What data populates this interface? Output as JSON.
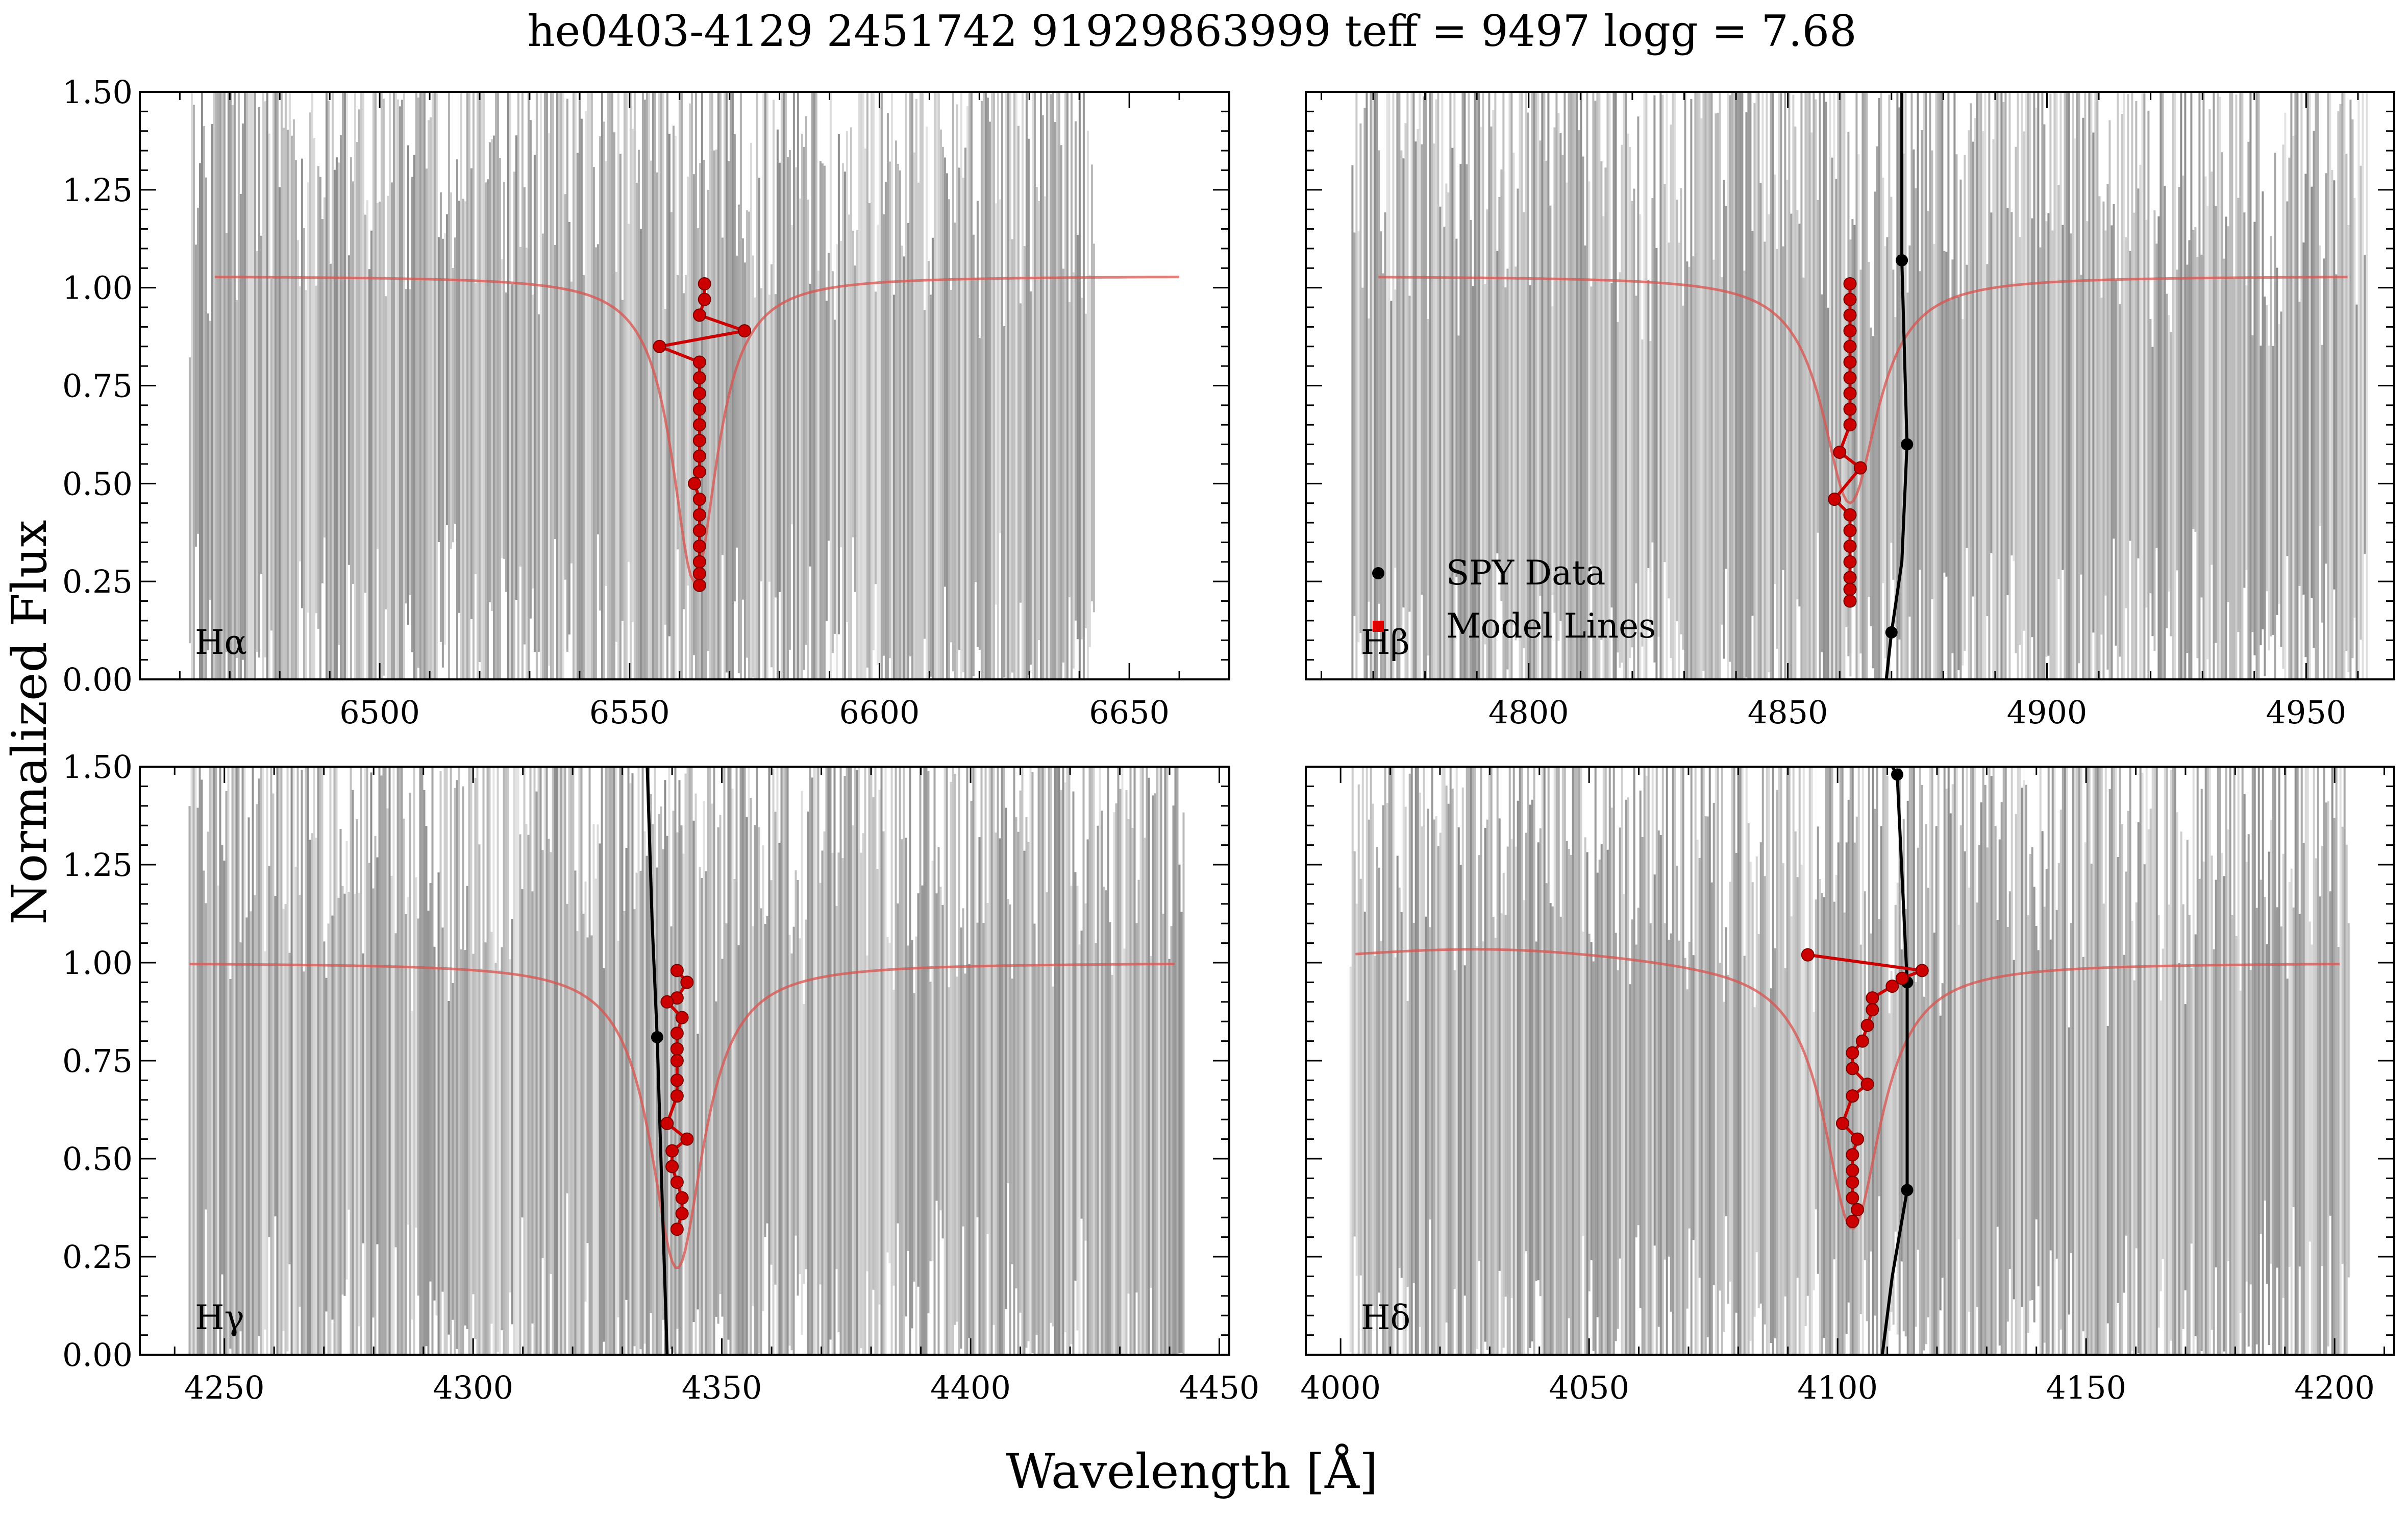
{
  "figure": {
    "title": "he0403-4129 2451742 91929863999 teff =  9497 logg = 7.68",
    "xlabel": "Wavelength [Å]",
    "ylabel": "Normalized Flux"
  },
  "legend": {
    "location": "lower-left of Hβ panel",
    "entries": [
      {
        "label": "SPY Data",
        "color": "#000000",
        "marker": "circle"
      },
      {
        "label": "Model Lines",
        "color": "#e00000",
        "marker": "square"
      }
    ]
  },
  "colors": {
    "data": "#000000",
    "data_band": "#6b6b6b",
    "model": "#d9534f",
    "model_points": "#cc0000",
    "axes": "#000000"
  },
  "chart_data": [
    {
      "type": "line",
      "panel_label": "Hα",
      "xlim": [
        6452,
        6670
      ],
      "ylim": [
        0,
        1.5
      ],
      "xticks": [
        6500,
        6550,
        6600,
        6650
      ],
      "yticks": [
        "0.00",
        "0.25",
        "0.50",
        "0.75",
        "1.00",
        "1.25",
        "1.50"
      ],
      "data_band_x": [
        6462,
        6643
      ],
      "model": {
        "x0": 6563,
        "x_start": 6467,
        "x_end": 6660,
        "depth": 0.78,
        "width": 5.5,
        "continuum_left": 1.03,
        "continuum_right": 1.03,
        "bump_x": null,
        "bump_amp": 0
      },
      "model_points": [
        [
          6565,
          1.01
        ],
        [
          6565,
          0.97
        ],
        [
          6564,
          0.93
        ],
        [
          6573,
          0.89
        ],
        [
          6556,
          0.85
        ],
        [
          6564,
          0.81
        ],
        [
          6564,
          0.77
        ],
        [
          6564,
          0.73
        ],
        [
          6564,
          0.69
        ],
        [
          6564,
          0.65
        ],
        [
          6564,
          0.61
        ],
        [
          6564,
          0.57
        ],
        [
          6564,
          0.53
        ],
        [
          6563,
          0.5
        ],
        [
          6564,
          0.46
        ],
        [
          6564,
          0.42
        ],
        [
          6564,
          0.38
        ],
        [
          6564,
          0.34
        ],
        [
          6564,
          0.3
        ],
        [
          6564,
          0.27
        ],
        [
          6564,
          0.24
        ]
      ],
      "data_points": [],
      "data_curve": []
    },
    {
      "type": "line",
      "panel_label": "Hβ",
      "xlim": [
        4757,
        4967
      ],
      "ylim": [
        0,
        1.5
      ],
      "xticks": [
        4800,
        4850,
        4900,
        4950
      ],
      "yticks": [],
      "data_band_x": [
        4766,
        4962
      ],
      "model": {
        "x0": 4862,
        "x_start": 4771,
        "x_end": 4958,
        "depth": 0.58,
        "width": 6.5,
        "continuum_left": 1.03,
        "continuum_right": 1.03,
        "bump_x": null,
        "bump_amp": 0
      },
      "model_points": [
        [
          4862,
          1.01
        ],
        [
          4862,
          0.97
        ],
        [
          4862,
          0.93
        ],
        [
          4862,
          0.89
        ],
        [
          4862,
          0.85
        ],
        [
          4862,
          0.81
        ],
        [
          4862,
          0.77
        ],
        [
          4862,
          0.73
        ],
        [
          4862,
          0.69
        ],
        [
          4862,
          0.65
        ],
        [
          4860,
          0.58
        ],
        [
          4864,
          0.54
        ],
        [
          4859,
          0.46
        ],
        [
          4862,
          0.42
        ],
        [
          4862,
          0.38
        ],
        [
          4862,
          0.34
        ],
        [
          4862,
          0.3
        ],
        [
          4862,
          0.26
        ],
        [
          4862,
          0.23
        ],
        [
          4862,
          0.2
        ]
      ],
      "data_points": [
        [
          4872,
          1.07
        ],
        [
          4873,
          0.6
        ],
        [
          4870,
          0.12
        ]
      ],
      "data_curve": [
        [
          4872,
          1.5
        ],
        [
          4872,
          1.07
        ],
        [
          4873,
          0.6
        ],
        [
          4872,
          0.3
        ],
        [
          4870,
          0.12
        ],
        [
          4869,
          0.0
        ]
      ]
    },
    {
      "type": "line",
      "panel_label": "Hγ",
      "xlim": [
        4233,
        4452
      ],
      "ylim": [
        0,
        1.5
      ],
      "xticks": [
        4250,
        4300,
        4350,
        4400,
        4450
      ],
      "yticks": [
        "0.00",
        "0.25",
        "0.50",
        "0.75",
        "1.00",
        "1.25",
        "1.50"
      ],
      "data_band_x": [
        4243,
        4443
      ],
      "model": {
        "x0": 4341,
        "x_start": 4243,
        "x_end": 4441,
        "depth": 0.78,
        "width": 6.5,
        "continuum_left": 1.0,
        "continuum_right": 1.0,
        "bump_x": null,
        "bump_amp": 0
      },
      "model_points": [
        [
          4341,
          0.98
        ],
        [
          4343,
          0.95
        ],
        [
          4341,
          0.91
        ],
        [
          4339,
          0.9
        ],
        [
          4342,
          0.86
        ],
        [
          4341,
          0.82
        ],
        [
          4341,
          0.78
        ],
        [
          4341,
          0.75
        ],
        [
          4341,
          0.7
        ],
        [
          4341,
          0.66
        ],
        [
          4339,
          0.59
        ],
        [
          4343,
          0.55
        ],
        [
          4340,
          0.52
        ],
        [
          4340,
          0.48
        ],
        [
          4341,
          0.44
        ],
        [
          4342,
          0.4
        ],
        [
          4342,
          0.36
        ],
        [
          4341,
          0.32
        ]
      ],
      "data_points": [
        [
          4337,
          0.81
        ]
      ],
      "data_curve": [
        [
          4335,
          1.5
        ],
        [
          4336,
          1.1
        ],
        [
          4337,
          0.81
        ],
        [
          4338,
          0.4
        ],
        [
          4339,
          0.0
        ]
      ]
    },
    {
      "type": "line",
      "panel_label": "Hδ",
      "xlim": [
        3993,
        4212
      ],
      "ylim": [
        0,
        1.5
      ],
      "xticks": [
        4000,
        4050,
        4100,
        4150,
        4200
      ],
      "yticks": [],
      "data_band_x": [
        4002,
        4203
      ],
      "model": {
        "x0": 4103,
        "x_start": 4003,
        "x_end": 4201,
        "depth": 0.68,
        "width": 7.0,
        "continuum_left": 1.0,
        "continuum_right": 1.0,
        "bump_x": 4030,
        "bump_amp": 0.04
      },
      "model_points": [
        [
          4094,
          1.02
        ],
        [
          4117,
          0.98
        ],
        [
          4113,
          0.96
        ],
        [
          4111,
          0.94
        ],
        [
          4107,
          0.91
        ],
        [
          4107,
          0.88
        ],
        [
          4106,
          0.84
        ],
        [
          4105,
          0.8
        ],
        [
          4103,
          0.77
        ],
        [
          4103,
          0.73
        ],
        [
          4106,
          0.69
        ],
        [
          4103,
          0.66
        ],
        [
          4101,
          0.59
        ],
        [
          4104,
          0.55
        ],
        [
          4103,
          0.51
        ],
        [
          4103,
          0.47
        ],
        [
          4103,
          0.44
        ],
        [
          4103,
          0.4
        ],
        [
          4104,
          0.37
        ],
        [
          4103,
          0.34
        ]
      ],
      "data_points": [
        [
          4112,
          1.48
        ],
        [
          4114,
          0.95
        ],
        [
          4114,
          0.42
        ]
      ],
      "data_curve": [
        [
          4111,
          1.5
        ],
        [
          4112,
          1.48
        ],
        [
          4114,
          0.95
        ],
        [
          4114,
          0.42
        ],
        [
          4111,
          0.2
        ],
        [
          4109,
          0.0
        ]
      ]
    }
  ]
}
